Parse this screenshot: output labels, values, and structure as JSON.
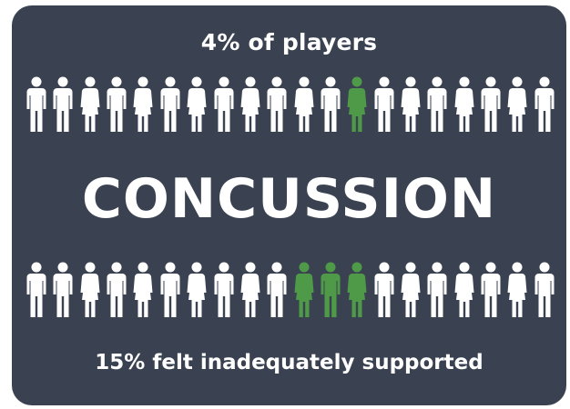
{
  "top_caption": "4% of players",
  "headline": "CONCUSSION",
  "bottom_caption": "15% felt inadequately supported",
  "colors": {
    "background": "#3a4150",
    "figure_default": "#ffffff",
    "figure_highlight": "#4f9a49"
  },
  "top_row": {
    "figures": [
      "male",
      "male",
      "female",
      "male",
      "female",
      "male",
      "female",
      "male",
      "female",
      "male",
      "female",
      "male",
      "female",
      "male",
      "female",
      "male",
      "female",
      "male",
      "female",
      "male"
    ],
    "highlighted": [
      12
    ]
  },
  "bottom_row": {
    "figures": [
      "male",
      "male",
      "female",
      "male",
      "female",
      "male",
      "female",
      "male",
      "female",
      "male",
      "female",
      "male",
      "female",
      "male",
      "female",
      "male",
      "female",
      "male",
      "female",
      "male"
    ],
    "highlighted": [
      10,
      11,
      12
    ]
  }
}
